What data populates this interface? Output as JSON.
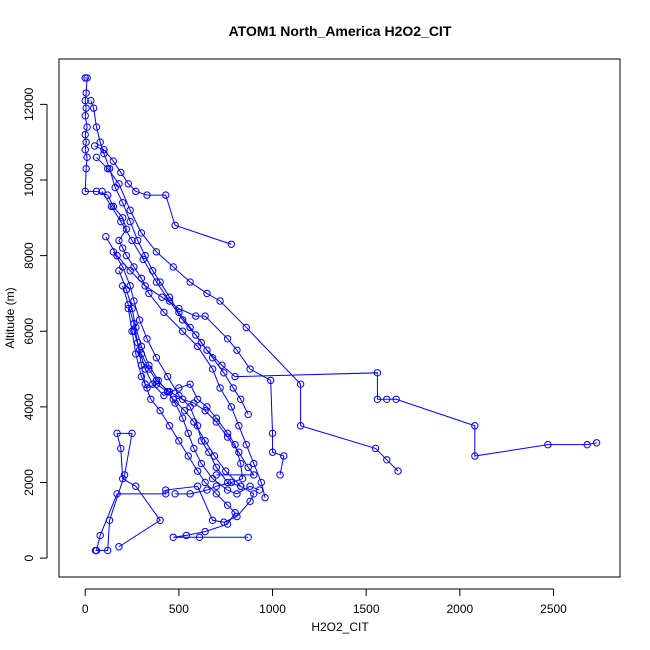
{
  "chart_data": {
    "type": "line",
    "title": "ATOM1 North_America H2O2_CIT",
    "xlabel": "H2O2_CIT",
    "ylabel": "Altitude (m)",
    "xlim": [
      -140,
      2855
    ],
    "ylim": [
      -500,
      13200
    ],
    "xticks": [
      0,
      500,
      1000,
      1500,
      2000,
      2500
    ],
    "yticks": [
      0,
      2000,
      4000,
      6000,
      8000,
      10000,
      12000
    ],
    "grid": false,
    "legend": "none",
    "color": "#0000ff",
    "series": [
      {
        "points": [
          [
            0,
            12700
          ],
          [
            10,
            12700
          ],
          [
            5,
            12300
          ],
          [
            0,
            12100
          ],
          [
            5,
            11900
          ],
          [
            0,
            11700
          ],
          [
            10,
            11400
          ],
          [
            0,
            11200
          ],
          [
            5,
            11000
          ],
          [
            0,
            10800
          ],
          [
            10,
            10600
          ],
          [
            5,
            10300
          ],
          [
            0,
            9700
          ],
          [
            60,
            9700
          ],
          [
            120,
            9600
          ],
          [
            150,
            9300
          ],
          [
            200,
            9000
          ],
          [
            220,
            8700
          ],
          [
            180,
            8400
          ],
          [
            200,
            8200
          ],
          [
            220,
            8000
          ],
          [
            260,
            7700
          ],
          [
            300,
            7400
          ],
          [
            340,
            7000
          ],
          [
            420,
            6500
          ],
          [
            520,
            6000
          ],
          [
            600,
            5600
          ],
          [
            680,
            5000
          ],
          [
            720,
            4500
          ],
          [
            780,
            4000
          ],
          [
            820,
            3500
          ],
          [
            860,
            3000
          ],
          [
            900,
            2500
          ],
          [
            940,
            2000
          ],
          [
            960,
            1600
          ]
        ]
      },
      {
        "points": [
          [
            30,
            12100
          ],
          [
            45,
            11900
          ],
          [
            60,
            11400
          ],
          [
            80,
            11000
          ],
          [
            100,
            10700
          ],
          [
            130,
            10300
          ],
          [
            160,
            9800
          ],
          [
            200,
            9400
          ],
          [
            240,
            8900
          ],
          [
            280,
            8400
          ],
          [
            320,
            8000
          ],
          [
            360,
            7600
          ],
          [
            400,
            7300
          ],
          [
            450,
            6900
          ],
          [
            500,
            6500
          ],
          [
            560,
            6100
          ],
          [
            620,
            5700
          ],
          [
            680,
            5300
          ],
          [
            740,
            4900
          ],
          [
            790,
            4500
          ],
          [
            830,
            4200
          ],
          [
            870,
            3800
          ]
        ]
      },
      {
        "points": [
          [
            50,
            10900
          ],
          [
            100,
            10800
          ],
          [
            150,
            10500
          ],
          [
            190,
            10200
          ],
          [
            230,
            9900
          ],
          [
            270,
            9700
          ],
          [
            330,
            9600
          ],
          [
            430,
            9600
          ],
          [
            480,
            8800
          ],
          [
            780,
            8300
          ]
        ]
      },
      {
        "points": [
          [
            60,
            10600
          ],
          [
            120,
            10300
          ],
          [
            180,
            9900
          ],
          [
            240,
            9200
          ],
          [
            300,
            8600
          ],
          [
            380,
            8100
          ],
          [
            470,
            7700
          ],
          [
            560,
            7300
          ],
          [
            650,
            7000
          ],
          [
            720,
            6800
          ],
          [
            860,
            6100
          ],
          [
            1150,
            4600
          ],
          [
            1150,
            3500
          ],
          [
            1550,
            2900
          ],
          [
            1610,
            2600
          ],
          [
            1670,
            2300
          ]
        ]
      },
      {
        "points": [
          [
            90,
            9700
          ],
          [
            140,
            9300
          ],
          [
            190,
            8900
          ],
          [
            250,
            8400
          ],
          [
            310,
            7900
          ],
          [
            380,
            7300
          ],
          [
            450,
            6800
          ],
          [
            520,
            6300
          ],
          [
            590,
            5900
          ],
          [
            650,
            5500
          ],
          [
            730,
            5100
          ],
          [
            800,
            4800
          ],
          [
            1560,
            4900
          ],
          [
            1560,
            4200
          ],
          [
            1610,
            4200
          ],
          [
            1660,
            4200
          ],
          [
            2080,
            3500
          ],
          [
            2080,
            2700
          ],
          [
            2470,
            3000
          ],
          [
            2680,
            3000
          ],
          [
            2730,
            3050
          ]
        ]
      },
      {
        "points": [
          [
            110,
            8500
          ],
          [
            170,
            8000
          ],
          [
            240,
            7600
          ],
          [
            320,
            7200
          ],
          [
            410,
            6900
          ],
          [
            500,
            6600
          ],
          [
            590,
            6400
          ],
          [
            640,
            6400
          ],
          [
            760,
            5800
          ],
          [
            810,
            5500
          ],
          [
            880,
            5000
          ],
          [
            990,
            4700
          ],
          [
            1000,
            3300
          ],
          [
            1000,
            2800
          ],
          [
            1060,
            2700
          ],
          [
            1040,
            2200
          ]
        ]
      },
      {
        "points": [
          [
            150,
            8100
          ],
          [
            200,
            7700
          ],
          [
            240,
            7200
          ],
          [
            260,
            6800
          ],
          [
            290,
            6300
          ],
          [
            330,
            5800
          ],
          [
            380,
            5300
          ],
          [
            440,
            4800
          ],
          [
            500,
            4300
          ],
          [
            560,
            4000
          ],
          [
            600,
            3500
          ],
          [
            620,
            3100
          ],
          [
            660,
            2800
          ],
          [
            700,
            2400
          ],
          [
            760,
            2000
          ],
          [
            830,
            1900
          ]
        ]
      },
      {
        "points": [
          [
            180,
            7600
          ],
          [
            220,
            7100
          ],
          [
            250,
            6600
          ],
          [
            270,
            6100
          ],
          [
            300,
            5600
          ],
          [
            340,
            5100
          ],
          [
            390,
            4700
          ],
          [
            440,
            4400
          ],
          [
            480,
            4100
          ],
          [
            520,
            3700
          ],
          [
            550,
            3300
          ],
          [
            580,
            2900
          ],
          [
            620,
            2500
          ],
          [
            680,
            2100
          ],
          [
            760,
            1800
          ],
          [
            810,
            1700
          ],
          [
            880,
            1900
          ],
          [
            930,
            1800
          ]
        ]
      },
      {
        "points": [
          [
            200,
            7200
          ],
          [
            230,
            6700
          ],
          [
            260,
            6200
          ],
          [
            280,
            5700
          ],
          [
            300,
            5100
          ],
          [
            320,
            4600
          ],
          [
            350,
            4200
          ],
          [
            400,
            3900
          ],
          [
            450,
            3500
          ],
          [
            500,
            3100
          ],
          [
            550,
            2700
          ],
          [
            600,
            2300
          ],
          [
            640,
            2000
          ],
          [
            700,
            1700
          ],
          [
            760,
            1400
          ],
          [
            800,
            1200
          ],
          [
            760,
            900
          ],
          [
            640,
            700
          ],
          [
            540,
            600
          ],
          [
            470,
            550
          ],
          [
            610,
            550
          ],
          [
            870,
            550
          ]
        ]
      },
      {
        "points": [
          [
            230,
            6600
          ],
          [
            250,
            6000
          ],
          [
            270,
            5400
          ],
          [
            300,
            4800
          ],
          [
            330,
            4500
          ],
          [
            380,
            4600
          ],
          [
            440,
            4400
          ],
          [
            470,
            4200
          ],
          [
            530,
            3900
          ],
          [
            580,
            3600
          ],
          [
            640,
            3100
          ],
          [
            690,
            2700
          ],
          [
            750,
            2300
          ],
          [
            830,
            1900
          ],
          [
            900,
            1700
          ],
          [
            880,
            1500
          ],
          [
            810,
            1100
          ],
          [
            740,
            950
          ],
          [
            680,
            1000
          ],
          [
            600,
            1900
          ],
          [
            430,
            1800
          ],
          [
            430,
            1700
          ],
          [
            170,
            1700
          ],
          [
            80,
            600
          ],
          [
            60,
            200
          ],
          [
            55,
            200
          ],
          [
            120,
            200
          ],
          [
            130,
            1000
          ],
          [
            210,
            2200
          ],
          [
            250,
            3300
          ],
          [
            170,
            3300
          ],
          [
            190,
            2900
          ],
          [
            200,
            2100
          ],
          [
            270,
            1900
          ],
          [
            400,
            1000
          ],
          [
            180,
            300
          ]
        ]
      },
      {
        "points": [
          [
            260,
            6000
          ],
          [
            290,
            5500
          ],
          [
            320,
            5000
          ],
          [
            360,
            4600
          ],
          [
            420,
            4300
          ],
          [
            500,
            4500
          ],
          [
            560,
            4600
          ],
          [
            600,
            4200
          ],
          [
            650,
            4000
          ],
          [
            700,
            3700
          ],
          [
            760,
            3300
          ],
          [
            800,
            3000
          ],
          [
            830,
            2500
          ],
          [
            840,
            2100
          ],
          [
            780,
            2000
          ],
          [
            700,
            1900
          ],
          [
            650,
            1800
          ],
          [
            560,
            1700
          ],
          [
            480,
            1700
          ]
        ]
      },
      {
        "points": [
          [
            300,
            5400
          ],
          [
            340,
            5000
          ],
          [
            380,
            4700
          ],
          [
            450,
            4400
          ],
          [
            520,
            4200
          ],
          [
            580,
            4100
          ],
          [
            640,
            3900
          ],
          [
            700,
            3600
          ],
          [
            760,
            3200
          ],
          [
            820,
            2800
          ],
          [
            870,
            2400
          ],
          [
            900,
            2200
          ],
          [
            700,
            2200
          ]
        ]
      }
    ]
  }
}
